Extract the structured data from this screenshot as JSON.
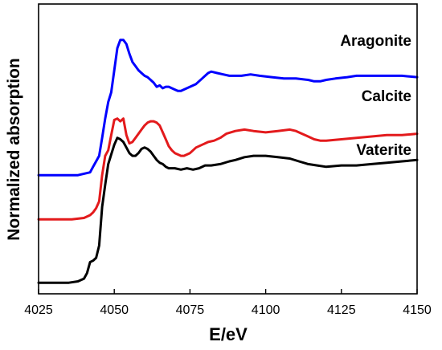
{
  "chart_data": {
    "type": "line",
    "title": "",
    "xlabel": "E/eV",
    "ylabel": "Normalized absorption",
    "xlim": [
      4025,
      4150
    ],
    "x_ticks": [
      4025,
      4050,
      4075,
      4100,
      4125,
      4150
    ],
    "y_ticks_labeled": false,
    "grid": false,
    "legend": "labels placed next to curves on the right",
    "series": [
      {
        "name": "Aragonite",
        "color": "#0000ff",
        "points": [
          [
            4025,
            0.86
          ],
          [
            4038,
            0.86
          ],
          [
            4040,
            0.87
          ],
          [
            4042,
            0.88
          ],
          [
            4043,
            0.92
          ],
          [
            4044,
            0.96
          ],
          [
            4045,
            1.0
          ],
          [
            4046,
            1.13
          ],
          [
            4047,
            1.27
          ],
          [
            4048,
            1.39
          ],
          [
            4049,
            1.46
          ],
          [
            4050,
            1.62
          ],
          [
            4051,
            1.78
          ],
          [
            4052,
            1.84
          ],
          [
            4053,
            1.84
          ],
          [
            4054,
            1.81
          ],
          [
            4055,
            1.74
          ],
          [
            4056,
            1.68
          ],
          [
            4057,
            1.65
          ],
          [
            4058,
            1.62
          ],
          [
            4059,
            1.6
          ],
          [
            4060,
            1.58
          ],
          [
            4061,
            1.57
          ],
          [
            4062,
            1.55
          ],
          [
            4063,
            1.53
          ],
          [
            4064,
            1.5
          ],
          [
            4065,
            1.51
          ],
          [
            4066,
            1.49
          ],
          [
            4067,
            1.5
          ],
          [
            4068,
            1.5
          ],
          [
            4070,
            1.48
          ],
          [
            4071,
            1.47
          ],
          [
            4072,
            1.47
          ],
          [
            4074,
            1.49
          ],
          [
            4075,
            1.5
          ],
          [
            4077,
            1.52
          ],
          [
            4079,
            1.56
          ],
          [
            4081,
            1.6
          ],
          [
            4082,
            1.61
          ],
          [
            4084,
            1.6
          ],
          [
            4086,
            1.59
          ],
          [
            4088,
            1.58
          ],
          [
            4092,
            1.58
          ],
          [
            4095,
            1.59
          ],
          [
            4098,
            1.58
          ],
          [
            4102,
            1.57
          ],
          [
            4106,
            1.56
          ],
          [
            4110,
            1.56
          ],
          [
            4114,
            1.55
          ],
          [
            4116,
            1.54
          ],
          [
            4118,
            1.54
          ],
          [
            4120,
            1.55
          ],
          [
            4123,
            1.56
          ],
          [
            4127,
            1.57
          ],
          [
            4130,
            1.58
          ],
          [
            4135,
            1.58
          ],
          [
            4140,
            1.58
          ],
          [
            4145,
            1.58
          ],
          [
            4150,
            1.57
          ]
        ]
      },
      {
        "name": "Calcite",
        "color": "#e31a1c",
        "points": [
          [
            4025,
            0.54
          ],
          [
            4036,
            0.54
          ],
          [
            4040,
            0.55
          ],
          [
            4042,
            0.57
          ],
          [
            4043,
            0.59
          ],
          [
            4044,
            0.62
          ],
          [
            4045,
            0.67
          ],
          [
            4046,
            0.86
          ],
          [
            4047,
            1.0
          ],
          [
            4048,
            1.04
          ],
          [
            4049,
            1.15
          ],
          [
            4050,
            1.26
          ],
          [
            4051,
            1.27
          ],
          [
            4052,
            1.25
          ],
          [
            4053,
            1.27
          ],
          [
            4054,
            1.15
          ],
          [
            4055,
            1.09
          ],
          [
            4056,
            1.1
          ],
          [
            4057,
            1.13
          ],
          [
            4058,
            1.16
          ],
          [
            4059,
            1.19
          ],
          [
            4060,
            1.22
          ],
          [
            4061,
            1.24
          ],
          [
            4062,
            1.25
          ],
          [
            4063,
            1.25
          ],
          [
            4064,
            1.24
          ],
          [
            4065,
            1.22
          ],
          [
            4066,
            1.17
          ],
          [
            4067,
            1.12
          ],
          [
            4068,
            1.07
          ],
          [
            4069,
            1.04
          ],
          [
            4070,
            1.02
          ],
          [
            4071,
            1.01
          ],
          [
            4072,
            1.0
          ],
          [
            4073,
            1.0
          ],
          [
            4075,
            1.02
          ],
          [
            4077,
            1.06
          ],
          [
            4079,
            1.08
          ],
          [
            4081,
            1.1
          ],
          [
            4083,
            1.11
          ],
          [
            4085,
            1.13
          ],
          [
            4087,
            1.16
          ],
          [
            4090,
            1.18
          ],
          [
            4093,
            1.19
          ],
          [
            4096,
            1.18
          ],
          [
            4100,
            1.17
          ],
          [
            4104,
            1.18
          ],
          [
            4108,
            1.19
          ],
          [
            4110,
            1.18
          ],
          [
            4112,
            1.16
          ],
          [
            4114,
            1.14
          ],
          [
            4116,
            1.12
          ],
          [
            4118,
            1.11
          ],
          [
            4120,
            1.11
          ],
          [
            4125,
            1.12
          ],
          [
            4130,
            1.13
          ],
          [
            4135,
            1.14
          ],
          [
            4140,
            1.15
          ],
          [
            4145,
            1.15
          ],
          [
            4150,
            1.16
          ]
        ]
      },
      {
        "name": "Vaterite",
        "color": "#000000",
        "points": [
          [
            4025,
            0.08
          ],
          [
            4035,
            0.08
          ],
          [
            4038,
            0.09
          ],
          [
            4040,
            0.11
          ],
          [
            4041,
            0.15
          ],
          [
            4042,
            0.23
          ],
          [
            4043,
            0.24
          ],
          [
            4044,
            0.26
          ],
          [
            4045,
            0.35
          ],
          [
            4046,
            0.63
          ],
          [
            4047,
            0.79
          ],
          [
            4048,
            0.94
          ],
          [
            4049,
            1.01
          ],
          [
            4050,
            1.08
          ],
          [
            4051,
            1.13
          ],
          [
            4052,
            1.12
          ],
          [
            4053,
            1.1
          ],
          [
            4054,
            1.06
          ],
          [
            4055,
            1.02
          ],
          [
            4056,
            1.0
          ],
          [
            4057,
            1.0
          ],
          [
            4058,
            1.02
          ],
          [
            4059,
            1.05
          ],
          [
            4060,
            1.06
          ],
          [
            4061,
            1.05
          ],
          [
            4062,
            1.03
          ],
          [
            4063,
            1.0
          ],
          [
            4064,
            0.97
          ],
          [
            4065,
            0.95
          ],
          [
            4066,
            0.94
          ],
          [
            4067,
            0.92
          ],
          [
            4068,
            0.91
          ],
          [
            4070,
            0.91
          ],
          [
            4072,
            0.9
          ],
          [
            4074,
            0.91
          ],
          [
            4076,
            0.9
          ],
          [
            4078,
            0.91
          ],
          [
            4080,
            0.93
          ],
          [
            4082,
            0.93
          ],
          [
            4085,
            0.94
          ],
          [
            4088,
            0.96
          ],
          [
            4090,
            0.97
          ],
          [
            4093,
            0.99
          ],
          [
            4096,
            1.0
          ],
          [
            4100,
            1.0
          ],
          [
            4104,
            0.99
          ],
          [
            4108,
            0.98
          ],
          [
            4111,
            0.96
          ],
          [
            4114,
            0.94
          ],
          [
            4117,
            0.93
          ],
          [
            4120,
            0.92
          ],
          [
            4125,
            0.93
          ],
          [
            4130,
            0.93
          ],
          [
            4135,
            0.94
          ],
          [
            4140,
            0.95
          ],
          [
            4145,
            0.96
          ],
          [
            4150,
            0.97
          ]
        ]
      }
    ]
  }
}
